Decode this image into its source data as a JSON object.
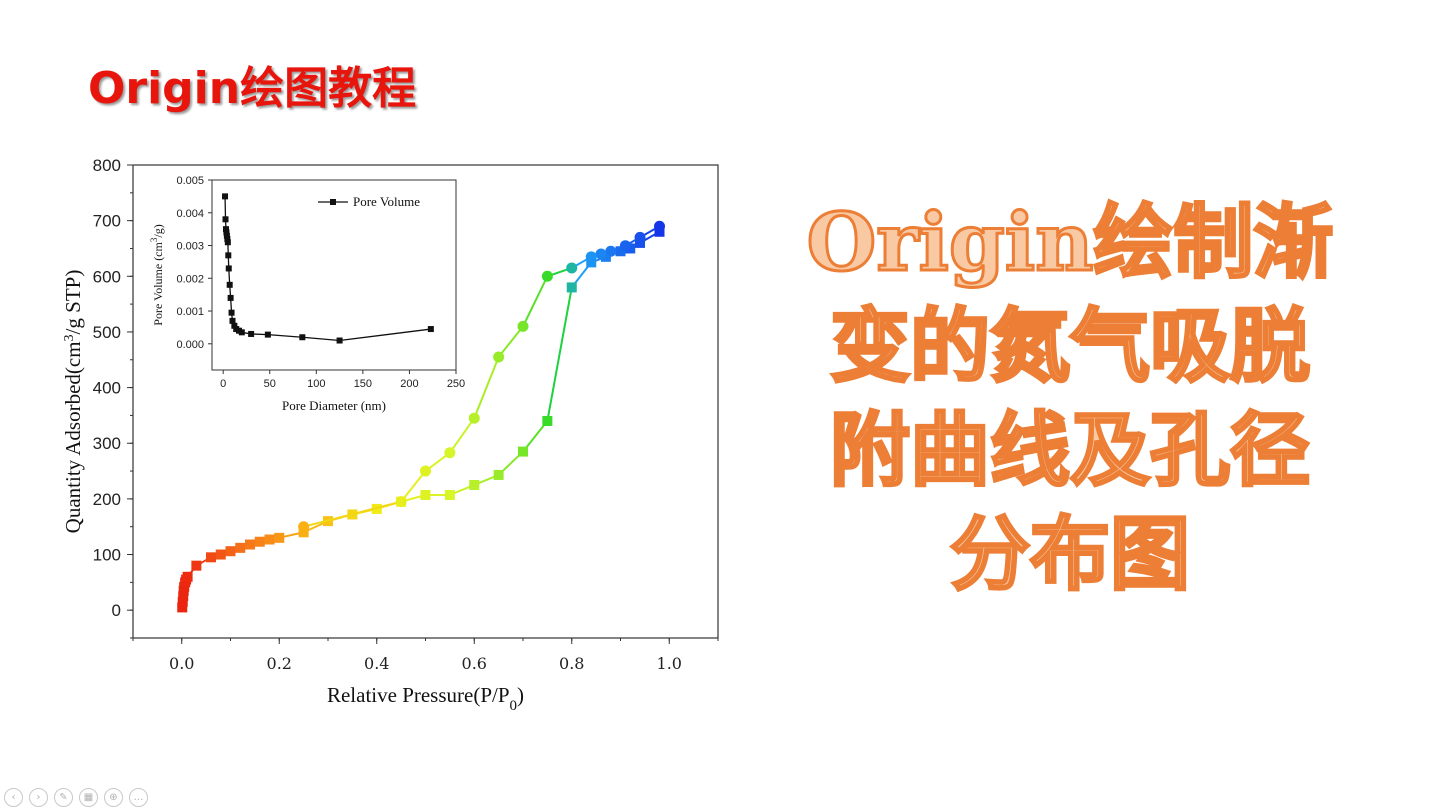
{
  "slide": {
    "title": "Origin绘图教程",
    "heading_lines": [
      "Origin绘制渐",
      "变的氮气吸脱",
      "附曲线及孔径",
      "分布图"
    ]
  },
  "toolbar": [
    {
      "icon": "previous-icon",
      "glyph": "‹"
    },
    {
      "icon": "next-icon",
      "glyph": "›"
    },
    {
      "icon": "pen-icon",
      "glyph": "✎"
    },
    {
      "icon": "slides-grid-icon",
      "glyph": "▦"
    },
    {
      "icon": "zoom-icon",
      "glyph": "⊕"
    },
    {
      "icon": "more-icon",
      "glyph": "…"
    }
  ],
  "chart_data": [
    {
      "type": "scatter",
      "style": "line+markers, gradient color by x (red→orange→yellow→green→blue)",
      "xlabel": "Relative Pressure(P/P0)",
      "ylabel": "Quantity Adsorbed(cm3/g STP)",
      "xlim": [
        -0.1,
        1.1
      ],
      "ylim": [
        -50,
        800
      ],
      "xticks": [
        "0.0",
        "0.2",
        "0.4",
        "0.6",
        "0.8",
        "1.0"
      ],
      "yticks": [
        "0",
        "100",
        "200",
        "300",
        "400",
        "500",
        "600",
        "700",
        "800"
      ],
      "series": [
        {
          "marker": "square",
          "x": [
            0.001,
            0.002,
            0.003,
            0.004,
            0.005,
            0.007,
            0.009,
            0.012,
            0.03,
            0.06,
            0.08,
            0.1,
            0.12,
            0.14,
            0.16,
            0.18,
            0.2,
            0.25,
            0.3,
            0.35,
            0.4,
            0.45,
            0.5,
            0.55,
            0.6,
            0.65,
            0.7,
            0.75,
            0.8,
            0.84,
            0.87,
            0.9,
            0.92,
            0.94,
            0.98
          ],
          "y": [
            5,
            15,
            25,
            35,
            42,
            50,
            55,
            60,
            80,
            95,
            100,
            106,
            112,
            118,
            123,
            127,
            130,
            140,
            160,
            172,
            182,
            195,
            207,
            207,
            225,
            243,
            285,
            340,
            580,
            625,
            635,
            645,
            650,
            660,
            680
          ]
        },
        {
          "marker": "circle",
          "x": [
            0.98,
            0.94,
            0.91,
            0.88,
            0.86,
            0.84,
            0.8,
            0.75,
            0.7,
            0.65,
            0.6,
            0.55,
            0.5,
            0.45,
            0.25
          ],
          "y": [
            690,
            670,
            655,
            645,
            640,
            635,
            615,
            600,
            510,
            455,
            345,
            283,
            250,
            195,
            150
          ]
        }
      ]
    },
    {
      "type": "line",
      "xlabel": "Pore Diameter (nm)",
      "ylabel": "Pore Volume (cm3/g)",
      "xlim": [
        -12,
        250
      ],
      "ylim": [
        -0.0008,
        0.005
      ],
      "xticks": [
        "0",
        "50",
        "100",
        "150",
        "200",
        "250"
      ],
      "yticks": [
        "0.000",
        "0.001",
        "0.002",
        "0.003",
        "0.004",
        "0.005"
      ],
      "legend": "top-right",
      "series": [
        {
          "name": "Pore Volume",
          "marker": "square",
          "x": [
            2,
            2.5,
            3,
            3.5,
            4,
            4.5,
            5,
            5.5,
            6,
            7,
            8,
            9,
            10,
            12,
            14,
            17,
            20,
            30,
            48,
            85,
            125,
            223
          ],
          "y": [
            0.0045,
            0.0038,
            0.0035,
            0.0034,
            0.0033,
            0.0032,
            0.0031,
            0.0027,
            0.0023,
            0.0018,
            0.0014,
            0.00095,
            0.0007,
            0.00055,
            0.00045,
            0.0004,
            0.00035,
            0.0003,
            0.00028,
            0.0002,
            0.0001,
            0.00045
          ]
        }
      ]
    }
  ]
}
